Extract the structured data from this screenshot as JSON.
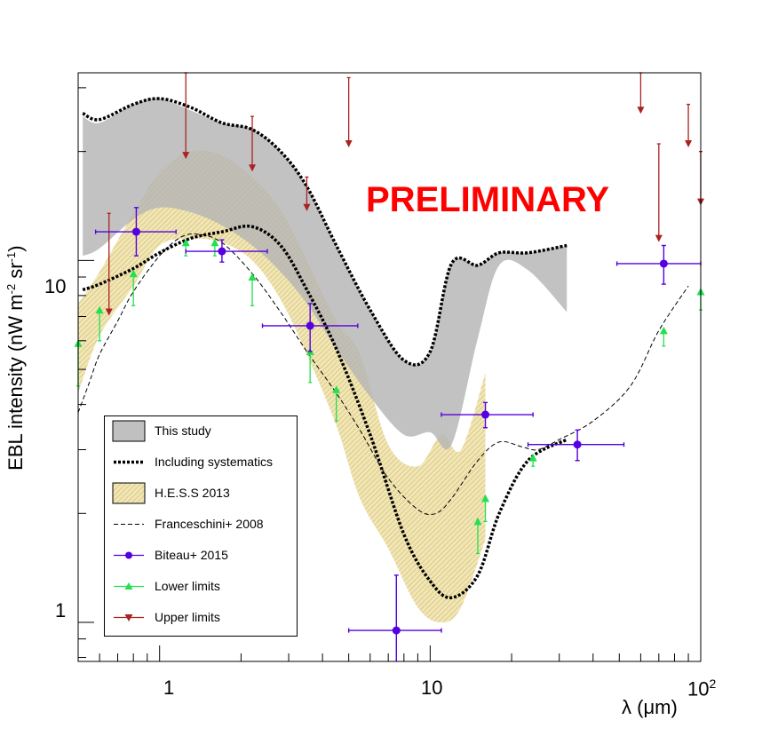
{
  "chart_data": {
    "type": "line",
    "watermark": "PRELIMINARY",
    "x_scale": "log",
    "y_scale": "log",
    "xlim": [
      0.5,
      100
    ],
    "ylim": [
      0.78,
      33
    ],
    "xlabel": "λ (μm)",
    "ylabel_parts": {
      "pre": "EBL intensity (nW m",
      "sup1": "-2",
      "mid": " sr",
      "sup2": "-1",
      "post": ")"
    },
    "x_tick_labels": [
      {
        "value": 1,
        "label": "1"
      },
      {
        "value": 10,
        "label": "10"
      },
      {
        "value": 100,
        "label": "10",
        "sup": "2"
      }
    ],
    "y_tick_labels": [
      {
        "value": 1,
        "label": "1"
      },
      {
        "value": 10,
        "label": "10"
      }
    ],
    "series": [
      {
        "name": "This study",
        "kind": "band",
        "color": "#c0c0c0",
        "x": [
          0.52,
          0.6,
          0.8,
          1.0,
          1.3,
          1.7,
          2.2,
          2.8,
          3.5,
          4.5,
          6,
          8,
          10,
          12,
          15,
          18,
          23,
          32
        ],
        "upper": [
          25,
          24,
          27,
          28,
          26,
          24,
          23,
          20,
          16,
          11,
          7.3,
          5.3,
          5.6,
          9.8,
          9.7,
          10.5,
          10.5,
          11
        ],
        "lower": [
          10.3,
          10.8,
          13,
          14,
          13.6,
          12.5,
          11,
          9.3,
          7.6,
          5.7,
          4.2,
          3.3,
          3.35,
          3.1,
          6.1,
          9.7,
          9.4,
          7.2
        ]
      },
      {
        "name": "Including systematics",
        "kind": "envelope",
        "color": "#000000",
        "x": [
          0.52,
          0.6,
          0.8,
          1.0,
          1.3,
          1.7,
          2.2,
          2.8,
          3.5,
          4.5,
          6,
          8,
          10,
          12,
          15,
          18,
          23,
          32
        ],
        "upper": [
          25.5,
          24.5,
          27,
          28,
          26.5,
          24,
          23,
          20,
          16,
          11,
          7.3,
          5.3,
          5.6,
          9.8,
          9.7,
          10.5,
          10.5,
          11
        ],
        "lower": [
          8.3,
          8.6,
          9.5,
          10.5,
          11.5,
          12,
          12.4,
          11,
          8.3,
          5.7,
          3.3,
          1.75,
          1.3,
          1.17,
          1.35,
          2.0,
          2.8,
          3.2
        ]
      },
      {
        "name": "H.E.S.S 2013",
        "kind": "band",
        "color": "#e8d898",
        "x": [
          0.5,
          0.6,
          0.8,
          1.0,
          1.3,
          1.7,
          2.2,
          2.8,
          3.5,
          4.5,
          5.5,
          7,
          9,
          11,
          13,
          16
        ],
        "upper": [
          7.6,
          9.3,
          13.5,
          17.5,
          20,
          19.5,
          17,
          13.8,
          10,
          6.8,
          5.5,
          3.1,
          2.7,
          3.3,
          3.0,
          4.9
        ],
        "lower": [
          4.3,
          6.2,
          8.5,
          11.0,
          11.5,
          11.2,
          10.0,
          7.8,
          5.5,
          3.5,
          2.2,
          1.6,
          1.1,
          1.0,
          1.1,
          1.7
        ]
      },
      {
        "name": "Franceschini+ 2008",
        "kind": "line",
        "color": "#000000",
        "x": [
          0.5,
          0.55,
          0.6,
          0.7,
          0.8,
          1.0,
          1.2,
          1.4,
          1.7,
          2.2,
          2.8,
          3.5,
          4.5,
          5.5,
          7,
          9,
          10.5,
          12,
          15,
          18,
          22,
          25,
          30,
          40,
          55,
          70,
          90
        ],
        "y": [
          3.8,
          4.6,
          5.5,
          6.8,
          8.2,
          10.3,
          11.6,
          11.8,
          11.2,
          9.2,
          7.2,
          5.6,
          4.3,
          3.4,
          2.5,
          2.05,
          2.0,
          2.2,
          2.8,
          3.15,
          3.05,
          3.0,
          3.2,
          3.6,
          4.5,
          6.4,
          8.5
        ]
      }
    ],
    "biteau_2015": {
      "name": "Biteau+ 2015",
      "color": "#5500e0",
      "points": [
        {
          "x": 0.82,
          "y": 12.0,
          "xlo": 0.58,
          "xhi": 1.15,
          "ylo": 10.3,
          "yhi": 14.0
        },
        {
          "x": 1.7,
          "y": 10.6,
          "xlo": 1.25,
          "xhi": 2.5,
          "ylo": 9.9,
          "yhi": 11.4
        },
        {
          "x": 3.6,
          "y": 6.6,
          "xlo": 2.4,
          "xhi": 5.4,
          "ylo": 5.6,
          "yhi": 7.6
        },
        {
          "x": 7.5,
          "y": 0.95,
          "xlo": 5.0,
          "xhi": 11.0,
          "ylo": 0.55,
          "yhi": 1.35
        },
        {
          "x": 16.0,
          "y": 3.75,
          "xlo": 11.0,
          "xhi": 24.0,
          "ylo": 3.45,
          "yhi": 4.05
        },
        {
          "x": 35.0,
          "y": 3.1,
          "xlo": 23.0,
          "xhi": 52.0,
          "ylo": 2.8,
          "yhi": 3.4
        },
        {
          "x": 73.0,
          "y": 9.8,
          "xlo": 49.0,
          "xhi": 100.0,
          "ylo": 8.6,
          "yhi": 11.0
        }
      ]
    },
    "lower_limits": {
      "name": "Lower limits",
      "color": "#22e050",
      "points": [
        {
          "x": 0.5,
          "y": 5.9,
          "ylo": 4.5
        },
        {
          "x": 0.6,
          "y": 7.3,
          "ylo": 6.0
        },
        {
          "x": 0.8,
          "y": 9.2,
          "ylo": 7.5
        },
        {
          "x": 1.25,
          "y": 11.2,
          "ylo": 10.3
        },
        {
          "x": 1.6,
          "y": 11.2,
          "ylo": 10.3
        },
        {
          "x": 2.2,
          "y": 9.0,
          "ylo": 7.5
        },
        {
          "x": 3.6,
          "y": 5.6,
          "ylo": 4.6
        },
        {
          "x": 4.5,
          "y": 4.4,
          "ylo": 3.6
        },
        {
          "x": 15.0,
          "y": 1.9,
          "ylo": 1.55
        },
        {
          "x": 16.0,
          "y": 2.2,
          "ylo": 1.9
        },
        {
          "x": 24.0,
          "y": 2.85,
          "ylo": 2.7
        },
        {
          "x": 73.0,
          "y": 6.4,
          "ylo": 5.8
        },
        {
          "x": 100.0,
          "y": 8.2,
          "ylo": 7.3
        }
      ]
    },
    "upper_limits": {
      "name": "Upper limits",
      "color": "#aa2222",
      "points": [
        {
          "x": 0.65,
          "y": 7.2,
          "yhi": 13.5
        },
        {
          "x": 1.25,
          "y": 19.5,
          "yhi": 35.0
        },
        {
          "x": 2.2,
          "y": 18.0,
          "yhi": 25.0
        },
        {
          "x": 3.5,
          "y": 14.0,
          "yhi": 17.0
        },
        {
          "x": 5.0,
          "y": 21.0,
          "yhi": 32.0
        },
        {
          "x": 60.0,
          "y": 26.0,
          "yhi": 36.0
        },
        {
          "x": 70.0,
          "y": 11.5,
          "yhi": 21.0
        },
        {
          "x": 90.0,
          "y": 21.0,
          "yhi": 27.0
        },
        {
          "x": 100.0,
          "y": 14.5,
          "yhi": 20.0
        }
      ]
    },
    "legend": {
      "placement": "lower-left",
      "entries": [
        {
          "key": "this_study",
          "label": "This study"
        },
        {
          "key": "systematics",
          "label": "Including systematics"
        },
        {
          "key": "hess",
          "label": "H.E.S.S 2013"
        },
        {
          "key": "franceschini",
          "label": "Franceschini+ 2008"
        },
        {
          "key": "biteau",
          "label": "Biteau+ 2015"
        },
        {
          "key": "lower",
          "label": "Lower limits"
        },
        {
          "key": "upper",
          "label": "Upper limits"
        }
      ]
    }
  }
}
